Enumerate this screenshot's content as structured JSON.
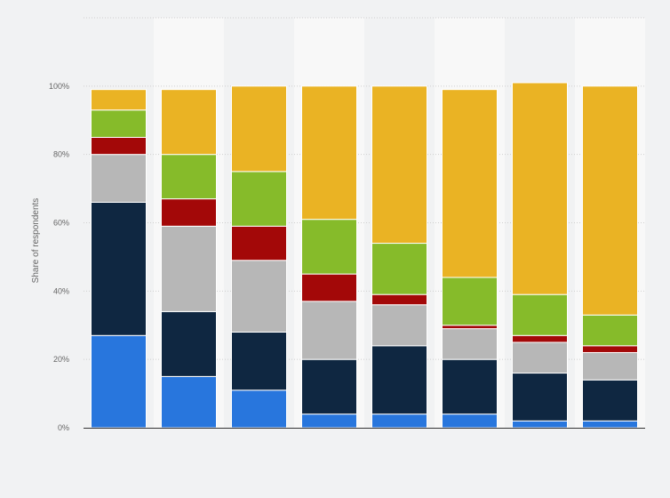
{
  "chart_data": {
    "type": "bar",
    "stacked": true,
    "ylabel": "Share of respondents",
    "xlabel": "",
    "ylim": [
      0,
      120
    ],
    "y_ticks": [
      "0%",
      "20%",
      "40%",
      "60%",
      "80%",
      "100%"
    ],
    "grid": true,
    "legend": "none",
    "categories": [
      "",
      "",
      "",
      "",
      "",
      "",
      "",
      ""
    ],
    "series": [
      {
        "color": "#2876dd",
        "values": [
          27,
          15,
          11,
          4,
          4,
          4,
          2,
          2
        ]
      },
      {
        "color": "#0f2741",
        "values": [
          39,
          19,
          17,
          16,
          20,
          16,
          14,
          12
        ]
      },
      {
        "color": "#b7b7b7",
        "values": [
          14,
          25,
          21,
          17,
          12,
          9,
          9,
          8
        ]
      },
      {
        "color": "#a30808",
        "values": [
          5,
          8,
          10,
          8,
          3,
          1,
          2,
          2
        ]
      },
      {
        "color": "#86bb2a",
        "values": [
          8,
          13,
          16,
          16,
          15,
          14,
          12,
          9
        ]
      },
      {
        "color": "#eab324",
        "values": [
          6,
          19,
          25,
          39,
          46,
          55,
          62,
          67
        ]
      }
    ]
  }
}
